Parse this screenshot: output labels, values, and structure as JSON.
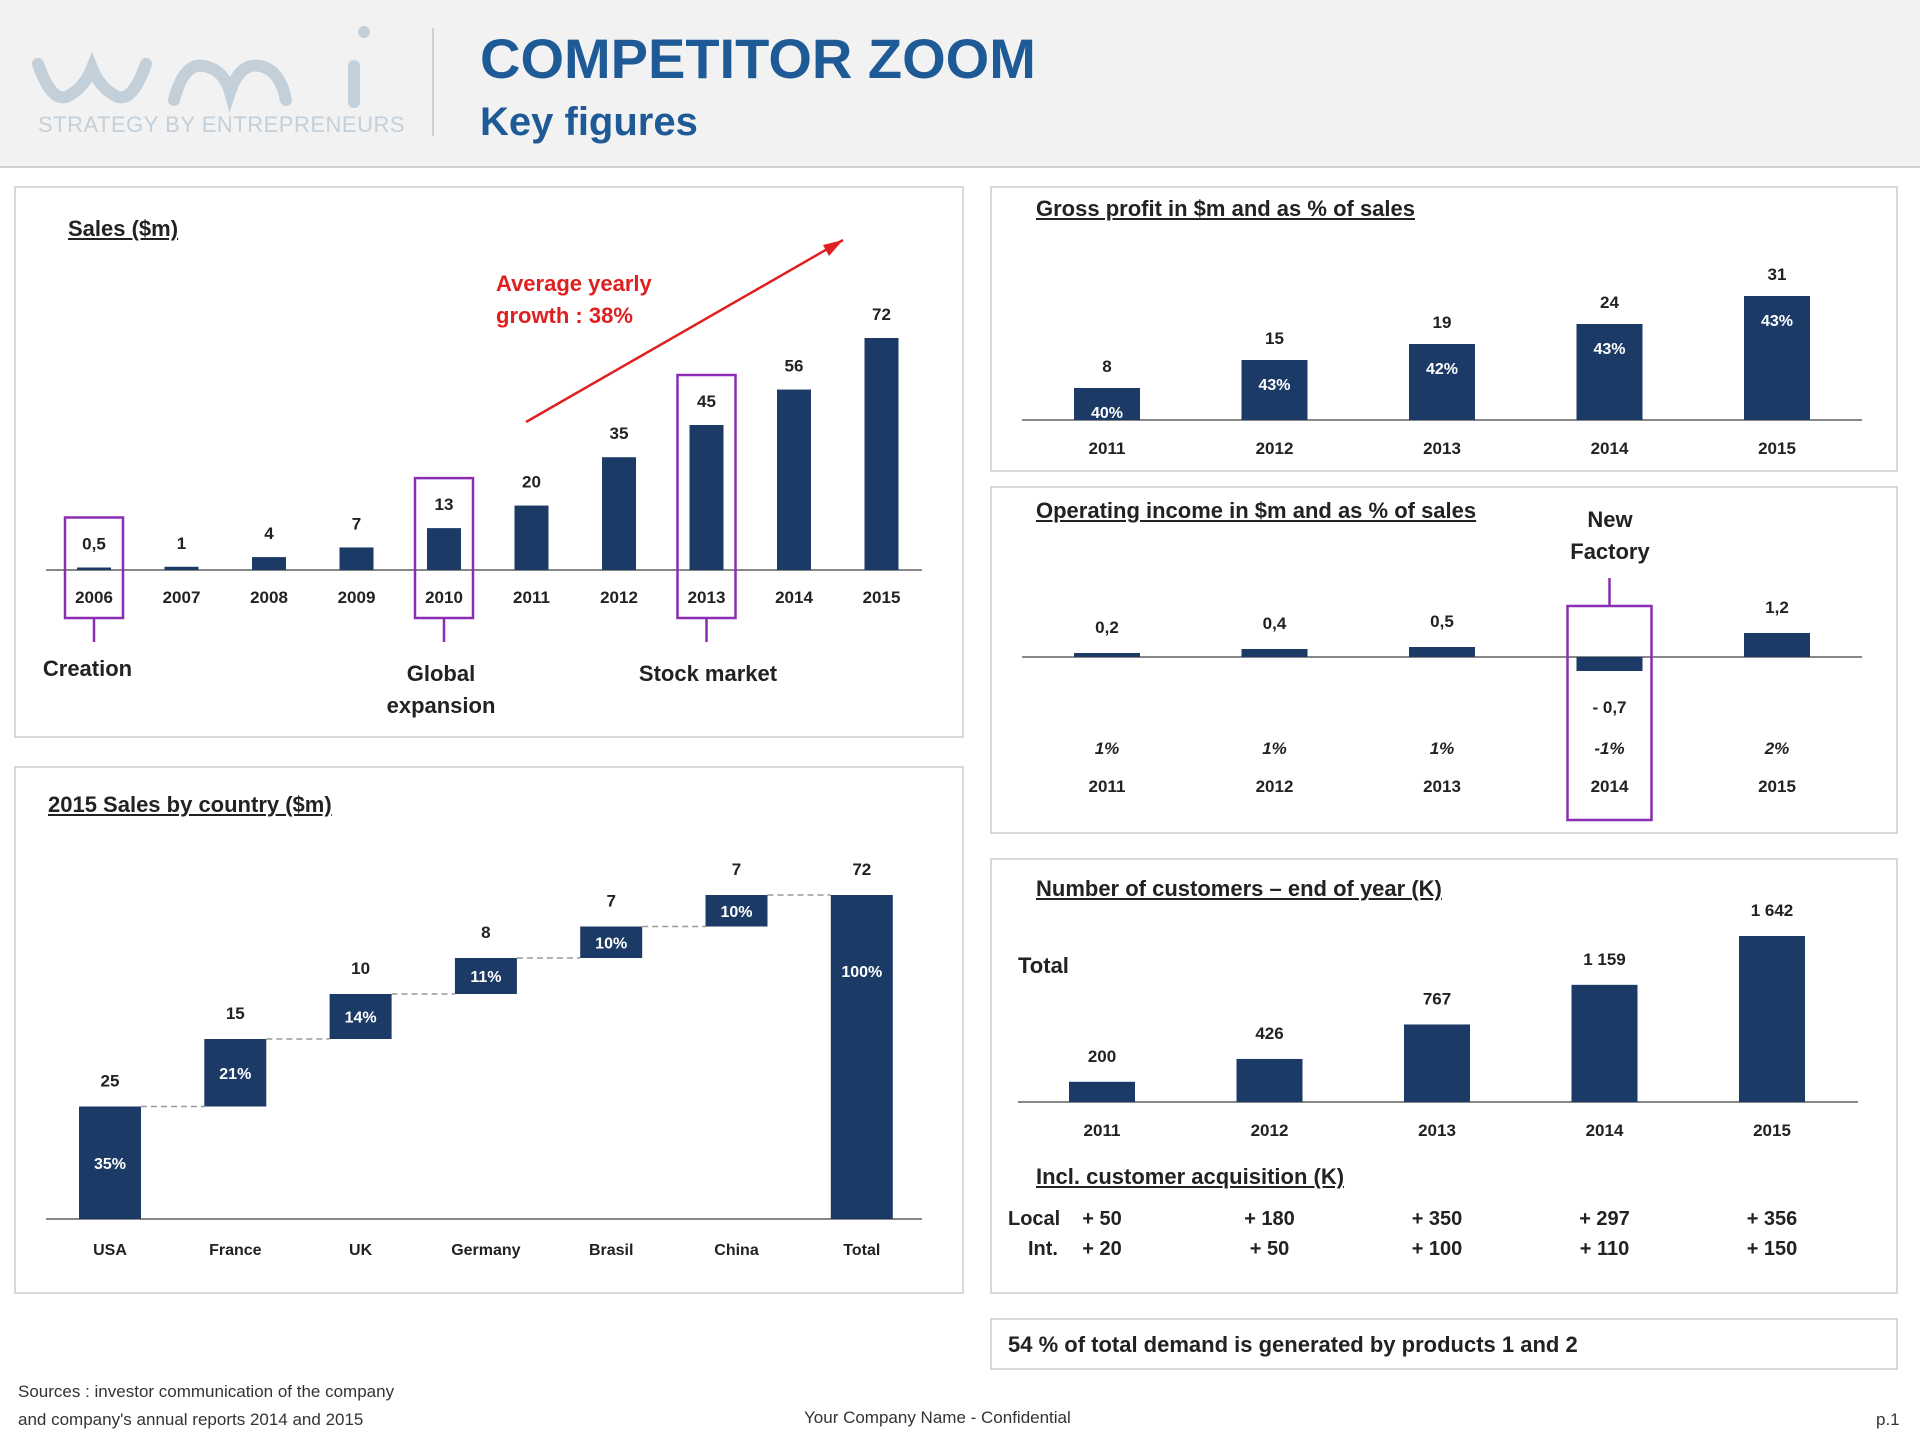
{
  "header": {
    "logo_text": "wmi",
    "tagline": "STRATEGY BY ENTREPRENEURS",
    "title": "COMPETITOR ZOOM",
    "subtitle": "Key figures"
  },
  "colors": {
    "bar": "#1b3a66",
    "title": "#1e5a96",
    "accent_red": "#e02020",
    "highlight_box": "#8a2db3"
  },
  "annotations": {
    "growth": "Average yearly growth : 38%",
    "creation": "Creation",
    "global_expansion": "Global expansion",
    "stock_market": "Stock market",
    "new_factory": "New Factory",
    "customers_total": "Total",
    "customer_acquisition_title": "Incl. customer acquisition (K)",
    "demand_note": "54 % of total demand is generated by products 1 and 2"
  },
  "footer": {
    "sources_line1": "Sources : investor communication of the company",
    "sources_line2": "and company's annual reports 2014 and 2015",
    "confidential": "Your Company Name - Confidential",
    "page": "p.1"
  },
  "chart_data": [
    {
      "type": "bar",
      "title": "Sales ($m)",
      "categories": [
        "2006",
        "2007",
        "2008",
        "2009",
        "2010",
        "2011",
        "2012",
        "2013",
        "2014",
        "2015"
      ],
      "values": [
        0.5,
        1,
        4,
        7,
        13,
        20,
        35,
        45,
        56,
        72
      ],
      "labels": [
        "0,5",
        "1",
        "4",
        "7",
        "13",
        "20",
        "35",
        "45",
        "56",
        "72"
      ],
      "highlighted": [
        "2006",
        "2010",
        "2013"
      ]
    },
    {
      "type": "bar",
      "title": "Gross profit in $m and as % of sales",
      "categories": [
        "2011",
        "2012",
        "2013",
        "2014",
        "2015"
      ],
      "values": [
        8,
        15,
        19,
        24,
        31
      ],
      "pct": [
        "40%",
        "43%",
        "42%",
        "43%",
        "43%"
      ]
    },
    {
      "type": "bar",
      "title": "Operating income in $m and as % of sales",
      "categories": [
        "2011",
        "2012",
        "2013",
        "2014",
        "2015"
      ],
      "values": [
        0.2,
        0.4,
        0.5,
        -0.7,
        1.2
      ],
      "labels": [
        "0,2",
        "0,4",
        "0,5",
        "- 0,7",
        "1,2"
      ],
      "pct": [
        "1%",
        "1%",
        "1%",
        "-1%",
        "2%"
      ],
      "highlighted": [
        "2014"
      ]
    },
    {
      "type": "bar",
      "subtype": "waterfall",
      "title": "2015 Sales by country ($m)",
      "categories": [
        "USA",
        "France",
        "UK",
        "Germany",
        "Brasil",
        "China",
        "Total"
      ],
      "values": [
        25,
        15,
        10,
        8,
        7,
        7,
        72
      ],
      "pct": [
        "35%",
        "21%",
        "14%",
        "11%",
        "10%",
        "10%",
        "100%"
      ]
    },
    {
      "type": "bar",
      "title": "Number of customers – end of year (K)",
      "categories": [
        "2011",
        "2012",
        "2013",
        "2014",
        "2015"
      ],
      "values": [
        200,
        426,
        767,
        1159,
        1642
      ],
      "labels": [
        "200",
        "426",
        "767",
        "1 159",
        "1 642"
      ],
      "acquisition": {
        "local_label": "Local",
        "int_label": "Int.",
        "local": [
          "+ 50",
          "+ 180",
          "+ 350",
          "+ 297",
          "+ 356"
        ],
        "int": [
          "+ 20",
          "+ 50",
          "+ 100",
          "+ 110",
          "+ 150"
        ]
      }
    }
  ]
}
